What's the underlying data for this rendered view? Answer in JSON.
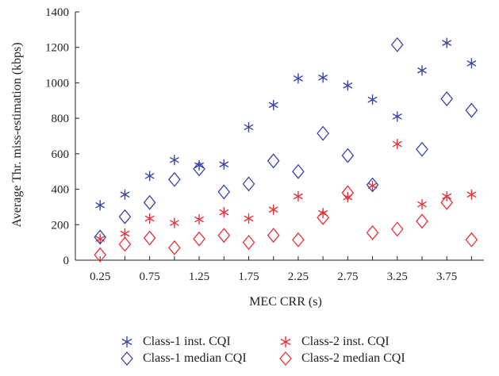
{
  "chart_data": {
    "type": "scatter",
    "title": "",
    "xlabel": "MEC CRR (s)",
    "ylabel": "Average Thr. miss-estimation (kbps)",
    "x": [
      0.25,
      0.5,
      0.75,
      1.0,
      1.25,
      1.5,
      1.75,
      2.0,
      2.25,
      2.5,
      2.75,
      3.0,
      3.25,
      3.5,
      3.75,
      4.0
    ],
    "x_tick_labels": [
      "0.25",
      "0.75",
      "1.25",
      "1.75",
      "2.25",
      "2.75",
      "3.25",
      "3.75"
    ],
    "x_tick_values": [
      0.25,
      0.75,
      1.25,
      1.75,
      2.25,
      2.75,
      3.25,
      3.75
    ],
    "xlim": [
      0.0,
      4.125
    ],
    "ylim": [
      0,
      1400
    ],
    "y_ticks": [
      0,
      200,
      400,
      600,
      800,
      1000,
      1200,
      1400
    ],
    "grid": false,
    "legend_position": "bottom",
    "series": [
      {
        "name": "Class-1 inst. CQI",
        "color": "#3a46a6",
        "marker": "asterisk",
        "values": [
          310,
          370,
          475,
          565,
          535,
          540,
          750,
          875,
          1025,
          1030,
          985,
          905,
          810,
          1070,
          1225,
          1110
        ]
      },
      {
        "name": "Class-2 inst. CQI",
        "color": "#e8323a",
        "marker": "asterisk",
        "values": [
          120,
          150,
          235,
          210,
          230,
          270,
          235,
          285,
          360,
          265,
          355,
          420,
          655,
          315,
          360,
          370
        ]
      },
      {
        "name": "Class-1 median CQI",
        "color": "#3a46a6",
        "marker": "diamond",
        "values": [
          130,
          245,
          325,
          455,
          515,
          385,
          430,
          560,
          500,
          715,
          590,
          425,
          1215,
          625,
          910,
          845
        ]
      },
      {
        "name": "Class-2 median CQI",
        "color": "#e8323a",
        "marker": "diamond",
        "values": [
          30,
          90,
          125,
          70,
          120,
          140,
          100,
          140,
          115,
          240,
          380,
          155,
          175,
          220,
          325,
          115
        ]
      }
    ]
  }
}
